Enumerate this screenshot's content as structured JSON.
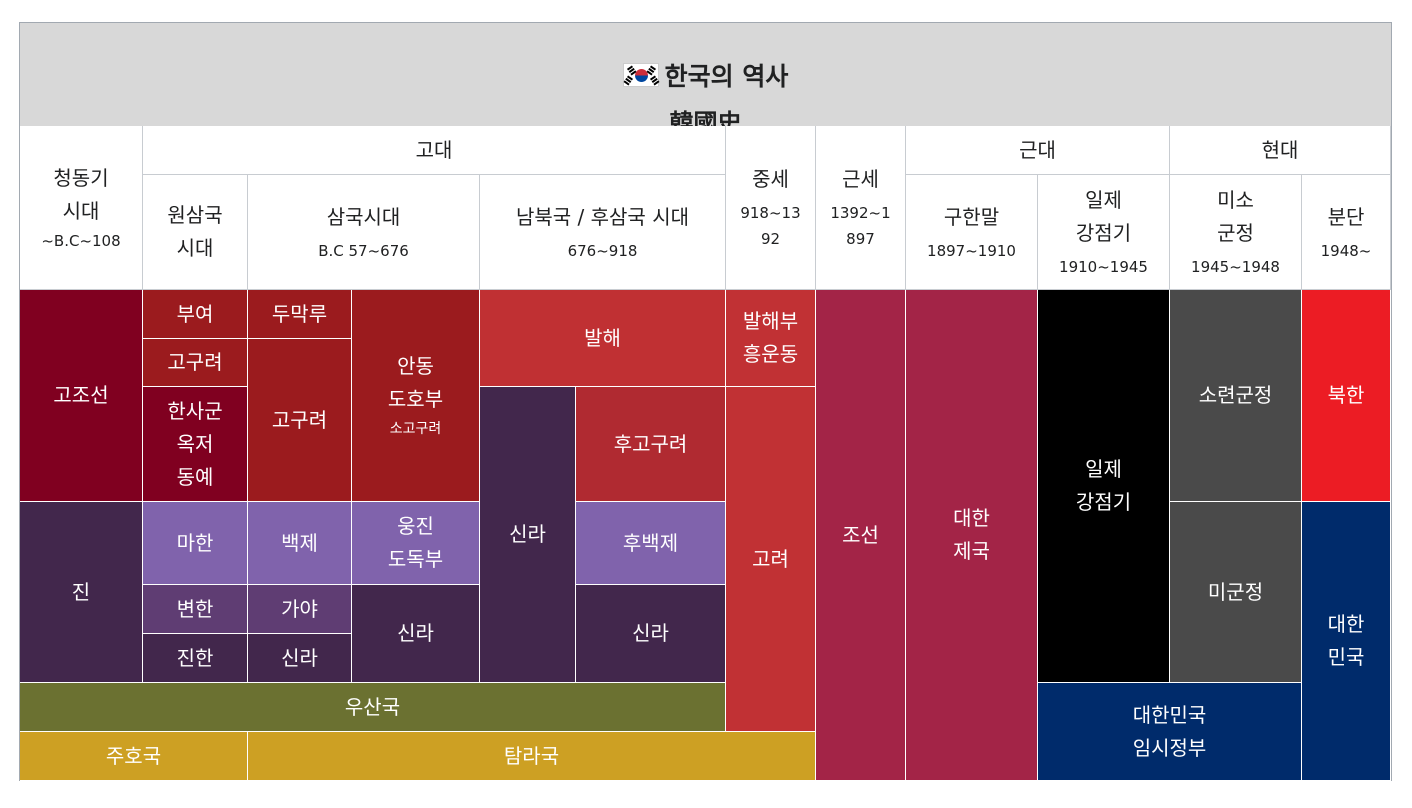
{
  "title": {
    "flag_icon": "south-korea-flag-icon",
    "line1": "한국의 역사",
    "line2": "韓國史"
  },
  "eras": {
    "bronze": {
      "line1": "청동기",
      "line2": "시대",
      "years": "~B.C~108"
    },
    "ancient": "고대",
    "medieval": {
      "name": "중세",
      "years_1": "918~13",
      "years_2": "92"
    },
    "early_modern": {
      "name": "근세",
      "years_1": "1392~1",
      "years_2": "897"
    },
    "modern": "근대",
    "contemporary": "현대"
  },
  "periods": {
    "proto": {
      "line1": "원삼국",
      "line2": "시대"
    },
    "three": {
      "name": "삼국시대",
      "years": "B.C 57~676"
    },
    "ns": {
      "name": "남북국 / 후삼국 시대",
      "years": "676~918"
    },
    "late_joseon": {
      "name": "구한말",
      "years": "1897~1910"
    },
    "colonial": {
      "line1": "일제",
      "line2": "강점기",
      "years": "1910~1945"
    },
    "trustee": {
      "line1": "미소",
      "line2": "군정",
      "years": "1945~1948"
    },
    "division": {
      "name": "분단",
      "years": "1948~"
    }
  },
  "states": {
    "gojoseon": "고조선",
    "jin": "진",
    "buyeo": "부여",
    "goguryeo_a": "고구려",
    "hansagun": {
      "line1": "한사군",
      "line2": "옥저",
      "line3": "동예"
    },
    "mahan": "마한",
    "byeonhan": "변한",
    "jinhan": "진한",
    "dumakru": "두막루",
    "goguryeo_b": "고구려",
    "baekje": "백제",
    "gaya": "가야",
    "silla_a": "신라",
    "andong": {
      "line1": "안동",
      "line2": "도호부",
      "sub": "소고구려"
    },
    "ungjin": {
      "line1": "웅진",
      "line2": "도독부"
    },
    "silla_b": "신라",
    "balhae": "발해",
    "silla_c": "신라",
    "later_goguryeo": "후고구려",
    "later_baekje": "후백제",
    "silla_d": "신라",
    "balhae_remnant": {
      "line1": "발해부",
      "line2": "흥운동"
    },
    "goryeo": "고려",
    "joseon": "조선",
    "korean_empire": {
      "line1": "대한",
      "line2": "제국"
    },
    "japanese_rule": {
      "line1": "일제",
      "line2": "강점기"
    },
    "soviet": "소련군정",
    "us_military": "미군정",
    "provisional": {
      "line1": "대한민국",
      "line2": "임시정부"
    },
    "north_korea": "북한",
    "south_korea": {
      "line1": "대한",
      "line2": "민국"
    },
    "usanguk": "우산국",
    "juhoguk": "주호국",
    "tamnaguk": "탐라국"
  },
  "colors": {
    "header_bg": "#d8d8d8",
    "crimson_dark": "#800020",
    "crimson": "#9b1b1e",
    "brick_red": "#c03033",
    "goryeo_red": "#c13134",
    "joseon": "#a32447",
    "purple_dark": "#42274c",
    "purple_light": "#8063ac",
    "olive": "#6b7131",
    "gold": "#cda023",
    "black": "#000000",
    "gray": "#4a4a4a",
    "north_red": "#ec1c24",
    "navy": "#002b6b"
  }
}
